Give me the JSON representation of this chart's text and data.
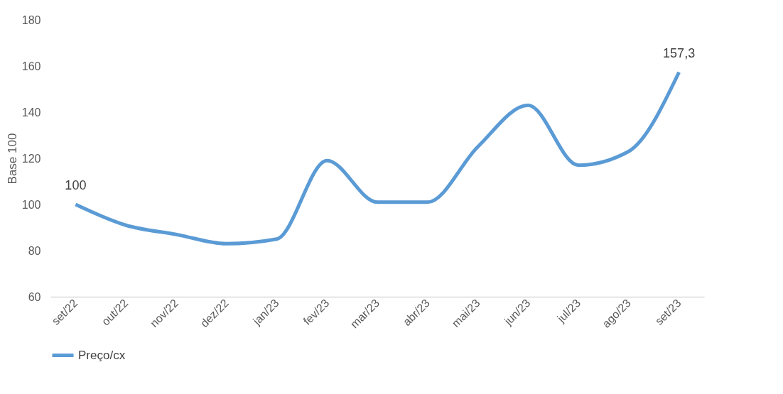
{
  "chart_data": {
    "type": "line",
    "ylabel": "Base 100",
    "categories": [
      "set/22",
      "out/22",
      "nov/22",
      "dez/22",
      "jan/23",
      "fev/23",
      "mar/23",
      "abr/23",
      "mai/23",
      "jun/23",
      "jul/23",
      "ago/23",
      "set/23"
    ],
    "series": [
      {
        "name": "Preço/cx",
        "color": "#5b9bd5",
        "values": [
          100,
          91,
          87,
          83,
          85,
          119,
          101,
          101,
          125,
          143,
          117,
          123,
          157.3
        ],
        "value_labels": [
          "100",
          null,
          null,
          null,
          null,
          null,
          null,
          null,
          null,
          null,
          null,
          null,
          "157,3"
        ]
      }
    ],
    "ylim": [
      60,
      180
    ],
    "yticks": [
      60,
      80,
      100,
      120,
      140,
      160,
      180
    ],
    "grid": false,
    "legend": "bottom",
    "marker": "none",
    "line_style": "solid"
  }
}
